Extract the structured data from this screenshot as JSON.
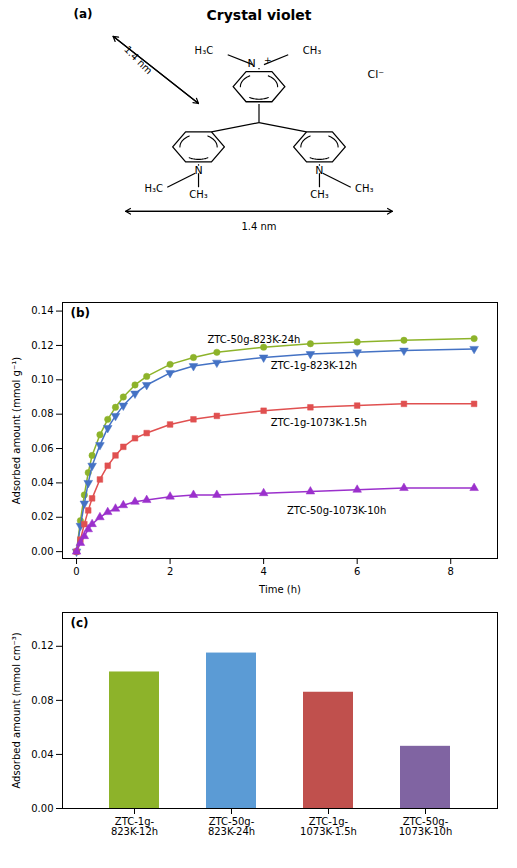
{
  "chart_data": [
    {
      "type": "diagram",
      "title": "Crystal violet",
      "tick_labels": false,
      "annotations": [
        {
          "text": "(a)"
        },
        {
          "text": "N"
        },
        {
          "text": "+"
        },
        {
          "text": "H₃C"
        },
        {
          "text": "CH₃"
        },
        {
          "text": "N"
        },
        {
          "text": "H₃C"
        },
        {
          "text": "CH₃"
        },
        {
          "text": "N"
        },
        {
          "text": "CH₃"
        },
        {
          "text": "CH₃"
        },
        {
          "text": "Cl⁻"
        },
        {
          "text": "1.4 nm"
        },
        {
          "text": "1.4 nm"
        }
      ]
    },
    {
      "type": "line",
      "xlabel": "Time (h)",
      "ylabel": "Adsorbed amount (mmol g⁻¹)",
      "x": [
        0,
        0.083,
        0.167,
        0.25,
        0.333,
        0.5,
        0.667,
        0.833,
        1.0,
        1.25,
        1.5,
        2.0,
        2.5,
        3.0,
        4.0,
        5.0,
        6.0,
        7.0,
        8.5
      ],
      "series": [
        {
          "name": "ZTC-50g-823K-24h",
          "color": "#8DB32A",
          "marker": "circle",
          "values": [
            0.0,
            0.018,
            0.033,
            0.046,
            0.056,
            0.068,
            0.077,
            0.084,
            0.09,
            0.097,
            0.102,
            0.109,
            0.113,
            0.116,
            0.119,
            0.121,
            0.122,
            0.123,
            0.124
          ]
        },
        {
          "name": "ZTC-1g-823K-12h",
          "color": "#4472C4",
          "marker": "triangle_down",
          "values": [
            0.0,
            0.015,
            0.028,
            0.04,
            0.05,
            0.062,
            0.072,
            0.079,
            0.085,
            0.092,
            0.097,
            0.104,
            0.108,
            0.11,
            0.113,
            0.115,
            0.116,
            0.117,
            0.118
          ]
        },
        {
          "name": "ZTC-1g-1073K-1.5h",
          "color": "#E05050",
          "marker": "square",
          "values": [
            0.0,
            0.007,
            0.016,
            0.024,
            0.031,
            0.042,
            0.05,
            0.056,
            0.061,
            0.066,
            0.069,
            0.074,
            0.077,
            0.079,
            0.082,
            0.084,
            0.085,
            0.086,
            0.086
          ]
        },
        {
          "name": "ZTC-50g-1073K-10h",
          "color": "#9B30CC",
          "marker": "triangle_up",
          "values": [
            0.0,
            0.005,
            0.009,
            0.013,
            0.016,
            0.02,
            0.023,
            0.025,
            0.027,
            0.029,
            0.03,
            0.032,
            0.033,
            0.033,
            0.034,
            0.035,
            0.036,
            0.037,
            0.037
          ]
        }
      ],
      "xlim": [
        -0.3,
        9.0
      ],
      "ylim": [
        -0.004,
        0.145
      ],
      "xticks": [
        0,
        2,
        4,
        6,
        8
      ],
      "yticks": [
        {
          "value": 0.0,
          "label": "0.00"
        },
        {
          "value": 0.02,
          "label": "0.02"
        },
        {
          "value": 0.04,
          "label": "0.04"
        },
        {
          "value": 0.06,
          "label": "0.06"
        },
        {
          "value": 0.08,
          "label": "0.08"
        },
        {
          "value": 0.1,
          "label": "0.10"
        },
        {
          "value": 0.12,
          "label": "0.12"
        },
        {
          "value": 0.14,
          "label": "0.14"
        }
      ],
      "grid": false,
      "legend": false,
      "annotations": [
        {
          "text": "(b)"
        },
        {
          "text": "ZTC-50g-823K-24h",
          "x": 2.8,
          "y": 0.1215
        },
        {
          "text": "ZTC-1g-823K-12h",
          "x": 4.15,
          "y": 0.1065
        },
        {
          "text": "ZTC-1g-1073K-1.5h",
          "x": 4.15,
          "y": 0.073
        },
        {
          "text": "ZTC-50g-1073K-10h",
          "x": 4.5,
          "y": 0.022
        }
      ]
    },
    {
      "type": "bar",
      "ylabel": "Adsorbed amount (mmol cm⁻³)",
      "categories": [
        "ZTC-1g-\n823K-12h",
        "ZTC-50g-\n823K-24h",
        "ZTC-1g-\n1073K-1.5h",
        "ZTC-50g-\n1073K-10h"
      ],
      "values": [
        0.101,
        0.115,
        0.086,
        0.046
      ],
      "colors": [
        "#8DB32A",
        "#5B9BD5",
        "#C0504D",
        "#8064A2"
      ],
      "ylim": [
        0,
        0.145
      ],
      "yticks": [
        {
          "value": 0.0,
          "label": "0.00"
        },
        {
          "value": 0.04,
          "label": "0.04"
        },
        {
          "value": 0.08,
          "label": "0.08"
        },
        {
          "value": 0.12,
          "label": "0.12"
        }
      ],
      "grid": false,
      "annotations": [
        {
          "text": "(c)"
        }
      ]
    }
  ]
}
